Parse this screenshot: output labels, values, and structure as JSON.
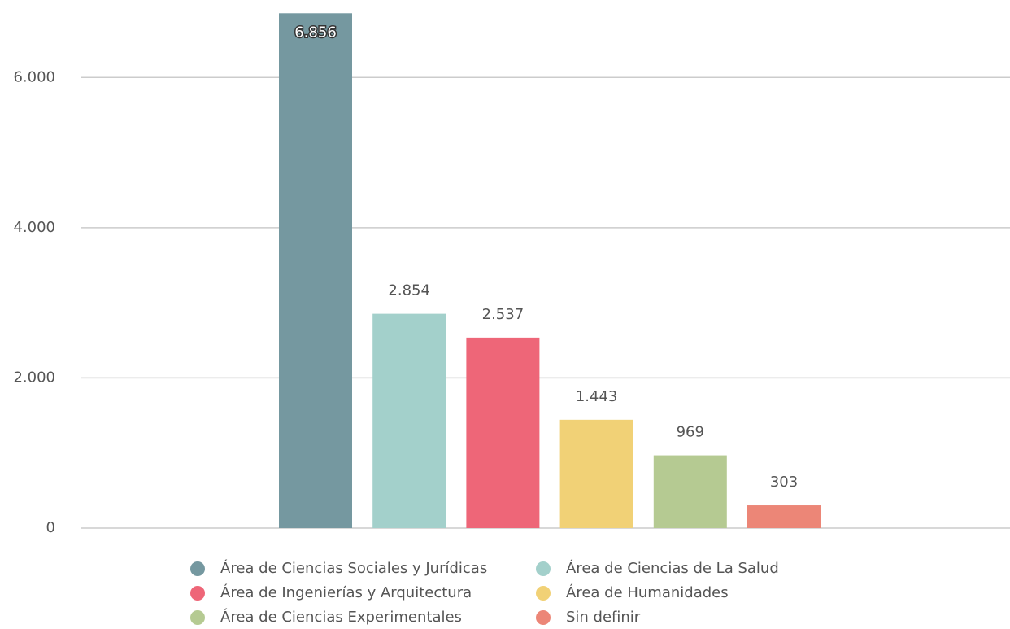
{
  "chart_data": {
    "type": "bar",
    "series": [
      {
        "name": "Área de Ciencias Sociales y Jurídicas",
        "color": "#7598a0",
        "values": [
          6856
        ],
        "value_labels": [
          "6.856"
        ]
      },
      {
        "name": "Área de Ciencias de La Salud",
        "color": "#a3d0cb",
        "values": [
          2854
        ],
        "value_labels": [
          "2.854"
        ]
      },
      {
        "name": "Área de Ingenierías y Arquitectura",
        "color": "#ee6678",
        "values": [
          2537
        ],
        "value_labels": [
          "2.537"
        ]
      },
      {
        "name": "Área de Humanidades",
        "color": "#f1d176",
        "values": [
          1443
        ],
        "value_labels": [
          "1.443"
        ]
      },
      {
        "name": "Área de Ciencias Experimentales",
        "color": "#b5ca92",
        "values": [
          969
        ]
      },
      {
        "name": "Sin definir",
        "color": "#ec8677",
        "values": [
          303
        ]
      }
    ],
    "ylim": [
      0,
      7000
    ],
    "yticks": [
      0,
      {
        "value": 2000,
        "label": "2.000"
      },
      {
        "value": 4000,
        "label": "4.000"
      },
      {
        "value": 6000,
        "label": "6.000"
      }
    ],
    "grid": true
  }
}
